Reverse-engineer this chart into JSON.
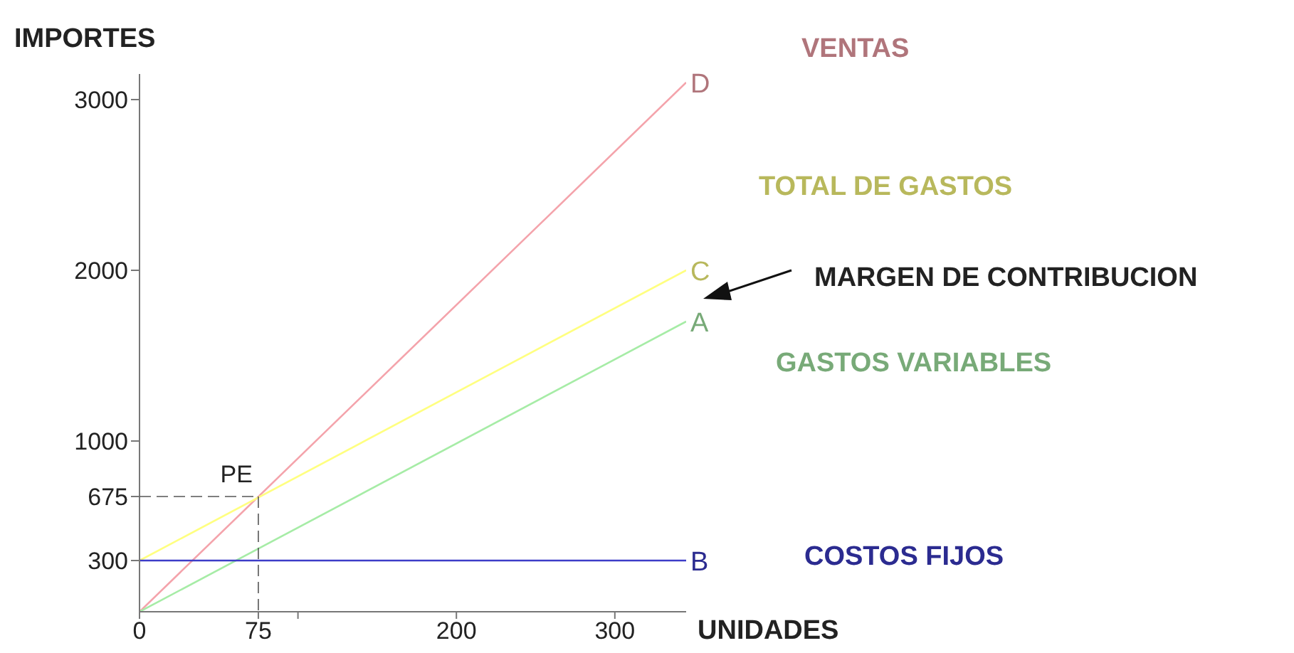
{
  "chart_data": {
    "type": "line",
    "xlabel": "UNIDADES",
    "ylabel": "IMPORTES",
    "x": [
      0,
      345
    ],
    "series": [
      {
        "name": "VENTAS",
        "color": "#f4a3ab",
        "values": [
          0,
          3100
        ]
      },
      {
        "name": "TOTAL DE GASTOS",
        "color": "#ffff80",
        "values": [
          300,
          2000
        ]
      },
      {
        "name": "GASTOS VARIABLES",
        "color": "#a6eca6",
        "values": [
          0,
          1700
        ]
      },
      {
        "name": "COSTOS FIJOS",
        "color": "#3c3cc8",
        "values": [
          300,
          300
        ]
      }
    ],
    "xlim": [
      0,
      345
    ],
    "ylim": [
      0,
      3150
    ],
    "xticks": [
      0,
      75,
      {
        "value": 100,
        "label": null
      },
      200,
      300
    ],
    "yticks": [
      300,
      675,
      1000,
      2000,
      3000
    ],
    "annotations": [
      "D",
      "C",
      "A",
      "B",
      {
        "text": "PE",
        "x": 75,
        "y": 675
      },
      "MARGEN DE CONTRIBUCION"
    ],
    "grid": false,
    "legend": false,
    "marker": "none",
    "line_style": "solid"
  }
}
